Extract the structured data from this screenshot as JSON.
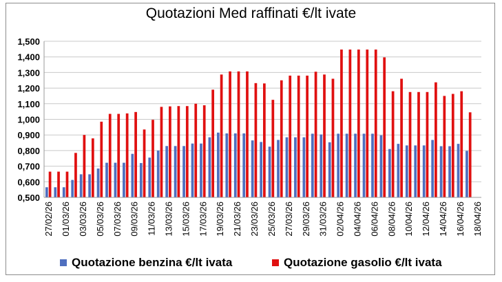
{
  "chart_data": {
    "type": "bar",
    "title": "Quotazioni Med raffinati €/lt ivate",
    "xlabel": "",
    "ylabel": "",
    "ylim": [
      0.5,
      1.5
    ],
    "yticks": [
      "0,500",
      "0,600",
      "0,700",
      "0,800",
      "0,900",
      "1,000",
      "1,100",
      "1,200",
      "1,300",
      "1,400",
      "1,500"
    ],
    "grid": true,
    "legend_position": "bottom",
    "x_tick_labels": [
      "27/02/26",
      "01/03/26",
      "03/03/26",
      "05/03/26",
      "07/03/26",
      "09/03/26",
      "11/03/26",
      "13/03/26",
      "15/03/26",
      "17/03/26",
      "19/03/26",
      "21/03/26",
      "23/03/26",
      "25/03/26",
      "27/03/26",
      "29/03/26",
      "31/03/26",
      "02/04/26",
      "04/04/26",
      "06/04/26",
      "08/04/26",
      "10/04/26",
      "12/04/26",
      "14/04/26",
      "16/04/26",
      "18/04/26"
    ],
    "categories": [
      "27/02/26",
      "28/02/26",
      "01/03/26",
      "02/03/26",
      "03/03/26",
      "04/03/26",
      "05/03/26",
      "06/03/26",
      "07/03/26",
      "08/03/26",
      "09/03/26",
      "10/03/26",
      "11/03/26",
      "12/03/26",
      "13/03/26",
      "14/03/26",
      "15/03/26",
      "16/03/26",
      "17/03/26",
      "18/03/26",
      "19/03/26",
      "20/03/26",
      "21/03/26",
      "22/03/26",
      "23/03/26",
      "24/03/26",
      "25/03/26",
      "26/03/26",
      "27/03/26",
      "28/03/26",
      "29/03/26",
      "30/03/26",
      "31/03/26",
      "01/04/26",
      "02/04/26",
      "03/04/26",
      "04/04/26",
      "05/04/26",
      "06/04/26",
      "07/04/26",
      "08/04/26",
      "09/04/26",
      "10/04/26",
      "11/04/26",
      "12/04/26",
      "13/04/26",
      "14/04/26",
      "15/04/26",
      "16/04/26",
      "17/04/26",
      "18/04/26"
    ],
    "series": [
      {
        "name": "Quotazione benzina €/lt ivata",
        "color": "#4f6fbf",
        "values": [
          0.565,
          0.565,
          0.565,
          0.612,
          0.648,
          0.648,
          0.685,
          0.722,
          0.722,
          0.722,
          0.779,
          0.72,
          0.755,
          0.8,
          0.829,
          0.829,
          0.829,
          0.845,
          0.845,
          0.885,
          0.915,
          0.91,
          0.91,
          0.91,
          0.865,
          0.855,
          0.825,
          0.868,
          0.885,
          0.885,
          0.885,
          0.908,
          0.903,
          0.853,
          0.908,
          0.908,
          0.908,
          0.908,
          0.908,
          0.898,
          0.81,
          0.843,
          0.833,
          0.833,
          0.833,
          0.868,
          0.828,
          0.828,
          0.843,
          0.798,
          null
        ]
      },
      {
        "name": "Quotazione gasolio €/lt ivata",
        "color": "#e01010",
        "values": [
          0.665,
          0.665,
          0.665,
          0.785,
          0.9,
          0.878,
          0.985,
          1.035,
          1.035,
          1.038,
          1.047,
          0.935,
          0.997,
          1.08,
          1.083,
          1.085,
          1.085,
          1.1,
          1.09,
          1.19,
          1.287,
          1.307,
          1.307,
          1.307,
          1.232,
          1.23,
          1.125,
          1.25,
          1.28,
          1.28,
          1.28,
          1.305,
          1.287,
          1.26,
          1.447,
          1.447,
          1.447,
          1.447,
          1.447,
          1.397,
          1.18,
          1.26,
          1.175,
          1.175,
          1.175,
          1.237,
          1.15,
          1.163,
          1.18,
          1.045,
          null
        ]
      }
    ]
  }
}
